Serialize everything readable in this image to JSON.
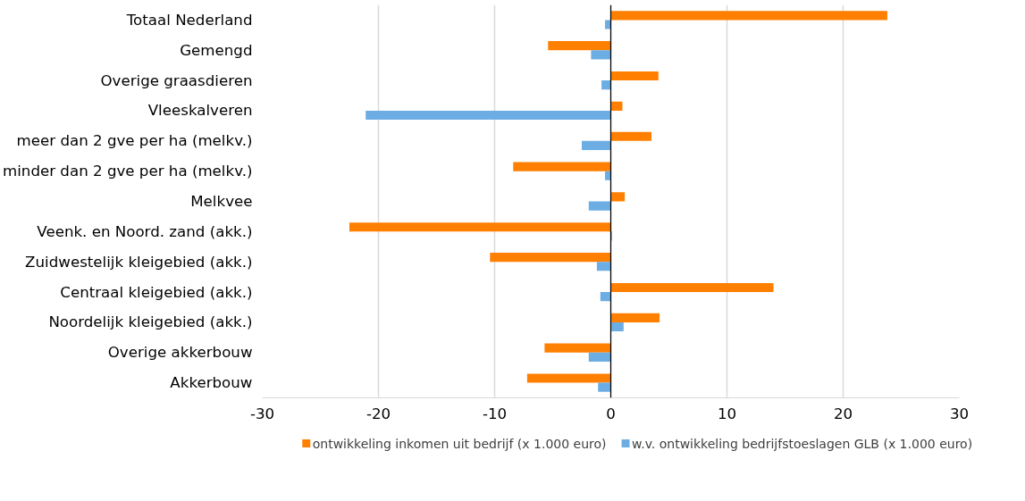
{
  "chart_data": {
    "type": "bar",
    "orientation": "horizontal",
    "categories": [
      "Totaal Nederland",
      "Gemengd",
      "Overige graasdieren",
      "Vleeskalveren",
      "meer dan 2 gve per ha (melkv.)",
      "minder dan 2 gve per ha (melkv.)",
      "Melkvee",
      "Veenk. en Noord. zand (akk.)",
      "Zuidwestelijk kleigebied (akk.)",
      "Centraal kleigebied (akk.)",
      "Noordelijk kleigebied (akk.)",
      "Overige akkerbouw",
      "Akkerbouw"
    ],
    "series": [
      {
        "name": "ontwikkeling inkomen uit bedrijf (x 1.000 euro)",
        "color": "#ff7f00",
        "values": [
          23.8,
          -5.4,
          4.1,
          1.0,
          3.5,
          -8.4,
          1.2,
          -22.5,
          -10.4,
          14.0,
          4.2,
          -5.7,
          -7.2
        ]
      },
      {
        "name": "w.v. ontwikkeling bedrijfstoeslagen GLB (x 1.000 euro)",
        "color": "#6caee3",
        "values": [
          -0.5,
          -1.7,
          -0.8,
          -21.1,
          -2.5,
          -0.5,
          -1.9,
          0.1,
          -1.2,
          -0.9,
          1.1,
          -1.9,
          -1.1
        ]
      }
    ],
    "xlim": [
      -30,
      30
    ],
    "xticks": [
      -30,
      -20,
      -10,
      0,
      10,
      20,
      30
    ],
    "grid": "x",
    "legend": "bottom"
  }
}
